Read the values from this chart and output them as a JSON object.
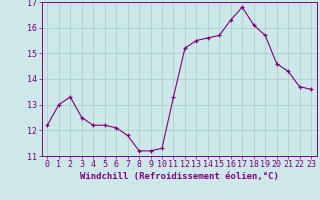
{
  "x": [
    0,
    1,
    2,
    3,
    4,
    5,
    6,
    7,
    8,
    9,
    10,
    11,
    12,
    13,
    14,
    15,
    16,
    17,
    18,
    19,
    20,
    21,
    22,
    23
  ],
  "y": [
    12.2,
    13.0,
    13.3,
    12.5,
    12.2,
    12.2,
    12.1,
    11.8,
    11.2,
    11.2,
    11.3,
    13.3,
    15.2,
    15.5,
    15.6,
    15.7,
    16.3,
    16.8,
    16.1,
    15.7,
    14.6,
    14.3,
    13.7,
    13.6
  ],
  "line_color": "#800080",
  "marker_color": "#800080",
  "bg_color": "#cce8e8",
  "grid_color": "#aacccc",
  "xlabel": "Windchill (Refroidissement éolien,°C)",
  "ylabel": "",
  "ylim": [
    11,
    17
  ],
  "xlim_min": -0.5,
  "xlim_max": 23.5,
  "yticks": [
    11,
    12,
    13,
    14,
    15,
    16,
    17
  ],
  "xticks": [
    0,
    1,
    2,
    3,
    4,
    5,
    6,
    7,
    8,
    9,
    10,
    11,
    12,
    13,
    14,
    15,
    16,
    17,
    18,
    19,
    20,
    21,
    22,
    23
  ],
  "tick_color": "#800080",
  "xlabel_fontsize": 6.5,
  "tick_fontsize": 6.0,
  "linewidth": 0.8,
  "markersize": 3.0
}
